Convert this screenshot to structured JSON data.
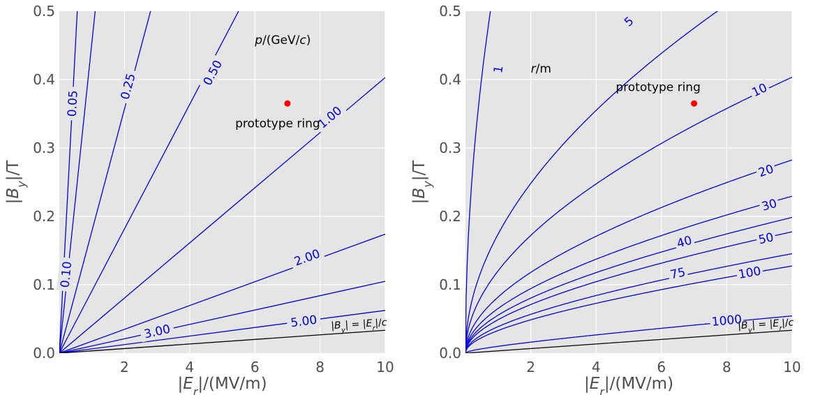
{
  "chart_data": [
    {
      "type": "line",
      "subtype": "contour",
      "xlabel": "|E_r|/(MV/m)",
      "ylabel": "|B_y|/T",
      "xlim": [
        0,
        10
      ],
      "ylim": [
        0,
        0.5
      ],
      "x_ticks": [
        "2",
        "4",
        "6",
        "8",
        "10"
      ],
      "y_ticks": [
        "0.0",
        "0.1",
        "0.2",
        "0.3",
        "0.4",
        "0.5"
      ],
      "grid": true,
      "contour_title": "p/(GeV/c)",
      "contour_unit": "GeV/c",
      "series": [
        {
          "name": "0.05",
          "label_pos": [
            0.4,
            0.365
          ]
        },
        {
          "name": "0.10",
          "label_pos": [
            0.2,
            0.115
          ]
        },
        {
          "name": "0.25",
          "label_pos": [
            2.1,
            0.39
          ]
        },
        {
          "name": "0.50",
          "label_pos": [
            4.7,
            0.41
          ]
        },
        {
          "name": "1.00",
          "label_pos": [
            8.3,
            0.345
          ]
        },
        {
          "name": "2.00",
          "label_pos": [
            7.6,
            0.14
          ]
        },
        {
          "name": "3.00",
          "label_pos": [
            3.0,
            0.032
          ]
        },
        {
          "name": "5.00",
          "label_pos": [
            7.5,
            0.047
          ]
        }
      ],
      "reference_line": {
        "label": "|B_y| = |E_r|/c",
        "x": [
          0,
          10
        ],
        "y": [
          0,
          0.0334
        ]
      },
      "point": {
        "label": "prototype ring",
        "x": 7,
        "y": 0.365
      }
    },
    {
      "type": "line",
      "subtype": "contour",
      "xlabel": "|E_r|/(MV/m)",
      "ylabel": "|B_y|/T",
      "xlim": [
        0,
        10
      ],
      "ylim": [
        0,
        0.5
      ],
      "x_ticks": [
        "2",
        "4",
        "6",
        "8",
        "10"
      ],
      "y_ticks": [
        "0.0",
        "0.1",
        "0.2",
        "0.3",
        "0.4",
        "0.5"
      ],
      "grid": true,
      "contour_title": "r/m",
      "contour_unit": "m",
      "series": [
        {
          "name": "1",
          "label_pos": [
            1.0,
            0.415
          ]
        },
        {
          "name": "5",
          "label_pos": [
            5.0,
            0.485
          ]
        },
        {
          "name": "10",
          "label_pos": [
            9.0,
            0.385
          ]
        },
        {
          "name": "20",
          "label_pos": [
            9.2,
            0.267
          ]
        },
        {
          "name": "30",
          "label_pos": [
            9.3,
            0.217
          ]
        },
        {
          "name": "40",
          "label_pos": [
            6.7,
            0.163
          ]
        },
        {
          "name": "50",
          "label_pos": [
            9.2,
            0.168
          ]
        },
        {
          "name": "75",
          "label_pos": [
            6.5,
            0.117
          ]
        },
        {
          "name": "100",
          "label_pos": [
            8.7,
            0.118
          ]
        },
        {
          "name": "1000",
          "label_pos": [
            8.0,
            0.048
          ]
        }
      ],
      "reference_line": {
        "label": "|B_y| = |E_r|/c",
        "x": [
          0,
          10
        ],
        "y": [
          0,
          0.0334
        ]
      },
      "point": {
        "label": "prototype ring",
        "x": 7,
        "y": 0.365
      }
    }
  ]
}
